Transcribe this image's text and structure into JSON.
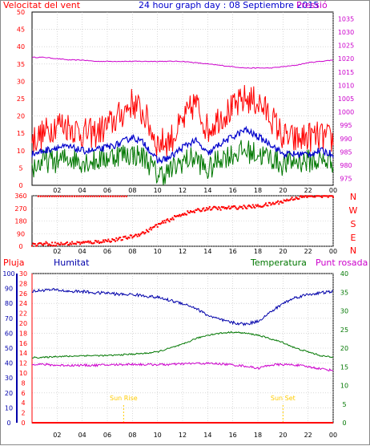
{
  "colors": {
    "wind": "#ff0000",
    "pressure": "#cc00cc",
    "average": "#0000cc",
    "gust_low": "#007700",
    "direction": "#ff0000",
    "rain": "#ff0000",
    "humidity": "#0000aa",
    "temperature": "#007700",
    "dewpoint": "#cc00cc",
    "sun_marker": "#ffcc00",
    "grid": "#c0c0c0",
    "text": "#000000"
  },
  "header": {
    "wind_label": "Velocitat del vent",
    "title": "24 hour graph day : 08 Septiembre 2015",
    "pressure_label": "Pressió"
  },
  "lower_header": {
    "rain_label": "Pluja",
    "humidity_label": "Humitat",
    "temperature_label": "Temperatura",
    "dewpoint_label": "Punt rosada"
  },
  "chart_data": [
    {
      "type": "line",
      "name": "wind-pressure",
      "x_ticks": [
        "02",
        "04",
        "06",
        "08",
        "10",
        "12",
        "14",
        "16",
        "18",
        "20",
        "22",
        "00"
      ],
      "left_axis": {
        "label": "Velocitat del vent",
        "ticks": [
          0,
          5,
          10,
          15,
          20,
          25,
          30,
          35,
          40,
          45,
          50
        ],
        "range": [
          0,
          50
        ]
      },
      "right_axis": {
        "label": "Pressió",
        "ticks": [
          975,
          980,
          985,
          990,
          995,
          1000,
          1005,
          1010,
          1015,
          1020,
          1025,
          1030,
          1035
        ],
        "range": [
          972.5,
          1037.5
        ]
      },
      "pressure_hourly": [
        1020.5,
        1020.5,
        1020.0,
        1019.5,
        1019.5,
        1019.0,
        1019.0,
        1019.0,
        1019.0,
        1019.0,
        1019.0,
        1019.0,
        1019.0,
        1018.5,
        1018.0,
        1017.5,
        1017.0,
        1016.5,
        1016.5,
        1016.5,
        1017.0,
        1017.5,
        1018.5,
        1019.0,
        1019.5
      ],
      "wind_gust_hourly": [
        13,
        15,
        18,
        17,
        15,
        15,
        17,
        20,
        24,
        20,
        12,
        13,
        18,
        24,
        16,
        20,
        22,
        25,
        24,
        20,
        14,
        13,
        14,
        14,
        13
      ],
      "wind_avg_hourly": [
        9,
        10,
        11,
        11,
        10,
        10,
        11,
        12,
        14,
        12,
        7,
        8,
        11,
        13,
        9,
        12,
        14,
        16,
        14,
        12,
        9,
        9,
        9,
        10,
        9
      ],
      "wind_low_hourly": [
        5,
        7,
        7,
        8,
        7,
        7,
        8,
        9,
        9,
        8,
        3,
        4,
        7,
        8,
        4,
        8,
        9,
        10,
        9,
        8,
        6,
        7,
        7,
        7,
        7
      ],
      "grid": true
    },
    {
      "type": "scatter",
      "name": "wind-direction",
      "x_ticks": [
        "02",
        "04",
        "06",
        "08",
        "10",
        "12",
        "14",
        "16",
        "18",
        "20",
        "22",
        "00"
      ],
      "left_axis": {
        "ticks": [
          0,
          90,
          180,
          270,
          360
        ],
        "range": [
          0,
          360
        ]
      },
      "right_axis": {
        "ticks": [
          "N",
          "W",
          "S",
          "E",
          "N"
        ]
      },
      "direction_hourly": [
        10,
        20,
        15,
        20,
        25,
        30,
        40,
        50,
        70,
        100,
        150,
        190,
        230,
        250,
        270,
        270,
        275,
        280,
        285,
        300,
        320,
        345,
        355,
        360,
        360
      ],
      "grid": true
    },
    {
      "type": "line",
      "name": "rain-humidity-temperature",
      "x_ticks": [
        "02",
        "04",
        "06",
        "08",
        "10",
        "12",
        "14",
        "16",
        "18",
        "20",
        "22",
        "00"
      ],
      "rain_axis": {
        "label": "Pluja",
        "ticks": [
          0,
          10,
          20,
          30,
          40,
          50,
          60,
          70,
          80,
          90,
          100
        ],
        "range": [
          0,
          100
        ]
      },
      "humidity_axis": {
        "label": "Humitat",
        "ticks": [
          0,
          2,
          4,
          6,
          8,
          10,
          12,
          14,
          16,
          18,
          20,
          22,
          24,
          26,
          28,
          30
        ],
        "range": [
          0,
          30
        ]
      },
      "temperature_axis": {
        "label": "Temperatura",
        "ticks": [
          0,
          5,
          10,
          15,
          20,
          25,
          30,
          35,
          40
        ],
        "range": [
          0,
          40
        ]
      },
      "humidity_hourly": [
        88,
        89,
        89,
        88,
        88,
        87,
        87,
        86,
        86,
        85,
        84,
        82,
        80,
        77,
        72,
        69,
        67,
        66,
        68,
        74,
        80,
        84,
        86,
        87,
        88
      ],
      "temperature_hourly": [
        17.5,
        17.5,
        17.8,
        17.8,
        18.0,
        18.0,
        18.0,
        18.2,
        18.4,
        18.6,
        19.0,
        20.0,
        21.0,
        22.5,
        23.5,
        24.0,
        24.3,
        24.0,
        23.5,
        22.5,
        21.5,
        20.0,
        19.0,
        18.0,
        17.5
      ],
      "dewpoint_hourly": [
        15.8,
        15.6,
        15.4,
        15.4,
        15.4,
        15.4,
        15.5,
        15.6,
        15.7,
        15.6,
        15.6,
        15.6,
        15.8,
        15.9,
        15.9,
        15.8,
        15.5,
        15.2,
        14.6,
        15.5,
        15.6,
        15.5,
        15.0,
        14.5,
        14.0
      ],
      "rain_total": 0,
      "annotations": {
        "sunrise_label": "Sun Rise",
        "sunset_label": "Sun Set",
        "sunrise_hour": 7.3,
        "sunset_hour": 20.0
      },
      "grid": true
    }
  ]
}
